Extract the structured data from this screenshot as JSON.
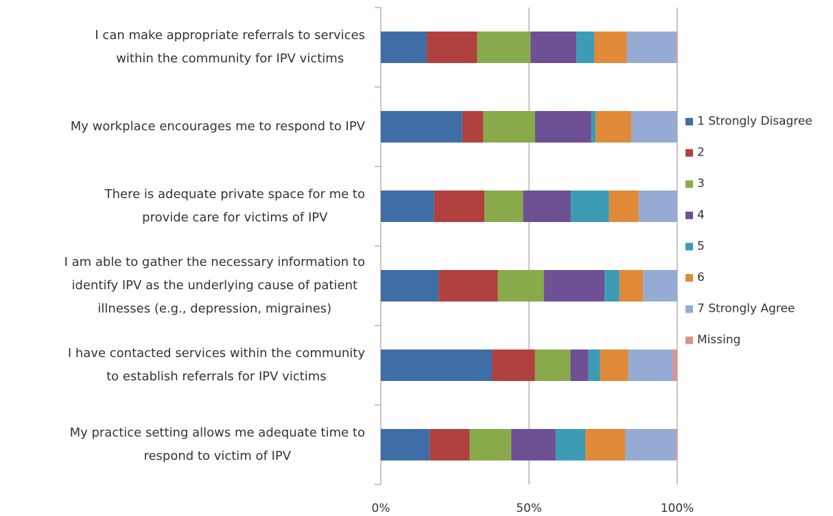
{
  "chart_data": {
    "type": "stacked_barh",
    "categories": [
      "I can make appropriate referrals to services\nwithin the  community for IPV victims",
      "My workplace encourages me to respond to IPV",
      "There is adequate private space for me to\nprovide care for victims of IPV",
      "I am able to gather the necessary information to\nidentify IPV as the underlying cause of patient\nillnesses (e.g., depression, migraines)",
      "I have contacted services within the community\nto establish referrals for IPV victims",
      "My practice setting allows me adequate time to\nrespond to victim of IPV"
    ],
    "series": [
      {
        "name": "1 Strongly Disagree",
        "color": "#3f6ea6",
        "values": [
          15.5,
          27.5,
          18,
          19.5,
          37.5,
          16.5
        ]
      },
      {
        "name": "2",
        "color": "#b0413f",
        "values": [
          17,
          7,
          17,
          20,
          14.5,
          13.5
        ]
      },
      {
        "name": "3",
        "color": "#89aa4a",
        "values": [
          18,
          17.5,
          13,
          15.5,
          12,
          14
        ]
      },
      {
        "name": "4",
        "color": "#6d5194",
        "values": [
          15.5,
          19,
          16,
          20.5,
          6,
          15
        ]
      },
      {
        "name": "5",
        "color": "#3c9bb5",
        "values": [
          6,
          1.5,
          13,
          5,
          4,
          10
        ]
      },
      {
        "name": "6",
        "color": "#e08a38",
        "values": [
          11,
          12,
          10,
          8,
          9.5,
          13.5
        ]
      },
      {
        "name": "7 Strongly Agree",
        "color": "#95abd4",
        "values": [
          16.5,
          15.5,
          13,
          11.5,
          15,
          17
        ]
      },
      {
        "name": "Missing",
        "color": "#d99593",
        "values": [
          0.5,
          0,
          0,
          0,
          1.5,
          0.5
        ]
      }
    ],
    "xlim": [
      0,
      100
    ],
    "xticks": [
      {
        "value": 0,
        "label": "0%"
      },
      {
        "value": 50,
        "label": "50%"
      },
      {
        "value": 100,
        "label": "100%"
      }
    ],
    "grid": true,
    "legend": "right"
  }
}
